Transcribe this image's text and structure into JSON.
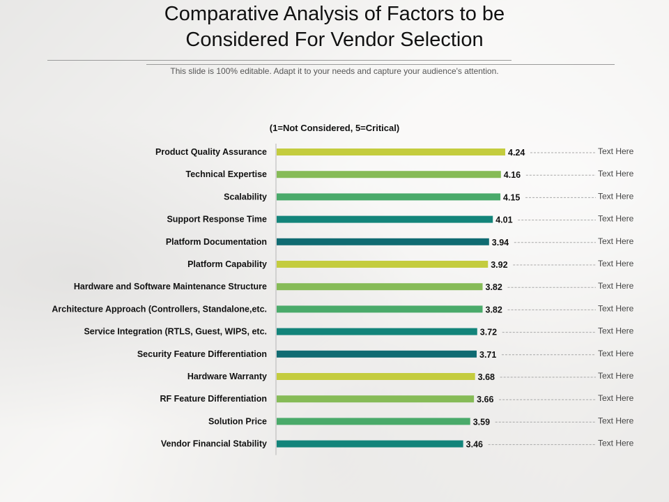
{
  "slide": {
    "title_line1": "Comparative Analysis of Factors to be",
    "title_line2": "Considered For Vendor Selection",
    "subtitle": "This slide is 100% editable. Adapt it to your needs and capture your audience's attention."
  },
  "colors": {
    "lime": "#c4cc3e",
    "light_green": "#86bb57",
    "green": "#4aaa6a",
    "teal": "#13847a",
    "dark_teal": "#106b72"
  },
  "chart_data": {
    "type": "bar",
    "orientation": "horizontal",
    "title": "(1=Not Considered, 5=Critical)",
    "categories": [
      "Product Quality Assurance",
      "Technical Expertise",
      "Scalability",
      "Support Response Time",
      "Platform Documentation",
      "Platform Capability",
      "Hardware and Software Maintenance Structure",
      "Architecture Approach (Controllers, Standalone,etc.",
      "Service Integration (RTLS, Guest, WIPS, etc.",
      "Security Feature Differentiation",
      "Hardware Warranty",
      "RF Feature Differentiation",
      "Solution Price",
      "Vendor Financial Stability"
    ],
    "values": [
      4.24,
      4.16,
      4.15,
      4.01,
      3.94,
      3.92,
      3.82,
      3.82,
      3.72,
      3.71,
      3.68,
      3.66,
      3.59,
      3.46
    ],
    "value_labels": [
      "4.24",
      "4.16",
      "4.15",
      "4.01",
      "3.94",
      "3.92",
      "3.82",
      "3.82",
      "3.72",
      "3.71",
      "3.68",
      "3.66",
      "3.59",
      "3.46"
    ],
    "bar_colors": [
      "lime",
      "light_green",
      "green",
      "teal",
      "dark_teal",
      "lime",
      "light_green",
      "green",
      "teal",
      "dark_teal",
      "lime",
      "light_green",
      "green",
      "teal"
    ],
    "notes": [
      "Text Here",
      "Text Here",
      "Text Here",
      "Text Here",
      "Text Here",
      "Text Here",
      "Text Here",
      "Text Here",
      "Text Here",
      "Text Here",
      "Text Here",
      "Text Here",
      "Text Here",
      "Text Here"
    ],
    "xlim": [
      0,
      4.24
    ],
    "xlabel": "",
    "ylabel": "",
    "grid": false
  }
}
